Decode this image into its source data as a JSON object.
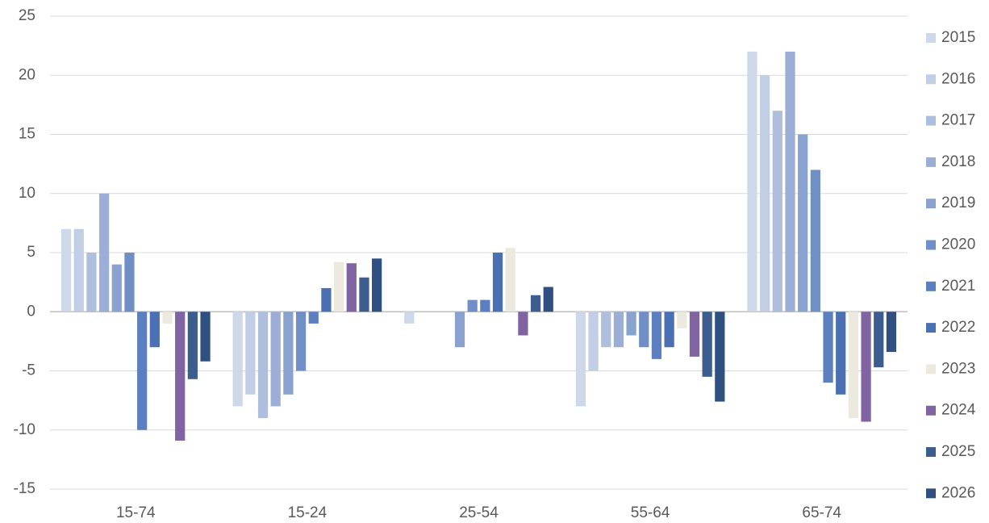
{
  "chart_data": {
    "type": "bar",
    "categories": [
      "15-74",
      "15-24",
      "25-54",
      "55-64",
      "65-74"
    ],
    "series": [
      {
        "name": "2015",
        "color": "#cfd8e8",
        "values": [
          7,
          -8,
          -1,
          -8,
          22
        ]
      },
      {
        "name": "2016",
        "color": "#c2cee5",
        "values": [
          7,
          -7,
          0,
          -5,
          20
        ]
      },
      {
        "name": "2017",
        "color": "#aebfdd",
        "values": [
          5,
          -9,
          0,
          -3,
          17
        ]
      },
      {
        "name": "2018",
        "color": "#9caed6",
        "values": [
          10,
          -8,
          0,
          -3,
          22
        ]
      },
      {
        "name": "2019",
        "color": "#8aa2d0",
        "values": [
          4,
          -7,
          -3,
          -2,
          15
        ]
      },
      {
        "name": "2020",
        "color": "#6f8fc6",
        "values": [
          5,
          -5,
          1,
          -3,
          12
        ]
      },
      {
        "name": "2021",
        "color": "#5b7fbf",
        "values": [
          -10,
          -1,
          1,
          -4,
          -6
        ]
      },
      {
        "name": "2022",
        "color": "#4a70b3",
        "values": [
          -3,
          2,
          5,
          -3,
          -7
        ]
      },
      {
        "name": "2023",
        "color": "#ece9df",
        "values": [
          -1,
          4.2,
          5.4,
          -1.4,
          -9
        ]
      },
      {
        "name": "2024",
        "color": "#8064a2",
        "values": [
          -10.9,
          4.1,
          -2,
          -3.8,
          -9.3
        ]
      },
      {
        "name": "2025",
        "color": "#3c5d8e",
        "values": [
          -5.7,
          2.9,
          1.4,
          -5.5,
          -4.7
        ]
      },
      {
        "name": "2026",
        "color": "#2f5080",
        "values": [
          -4.2,
          4.5,
          2.1,
          -7.6,
          -3.4
        ]
      }
    ],
    "ylim": [
      -15,
      25
    ],
    "yticks": [
      -15,
      -10,
      -5,
      0,
      5,
      10,
      15,
      20,
      25
    ],
    "grid": true,
    "legend": "right"
  }
}
